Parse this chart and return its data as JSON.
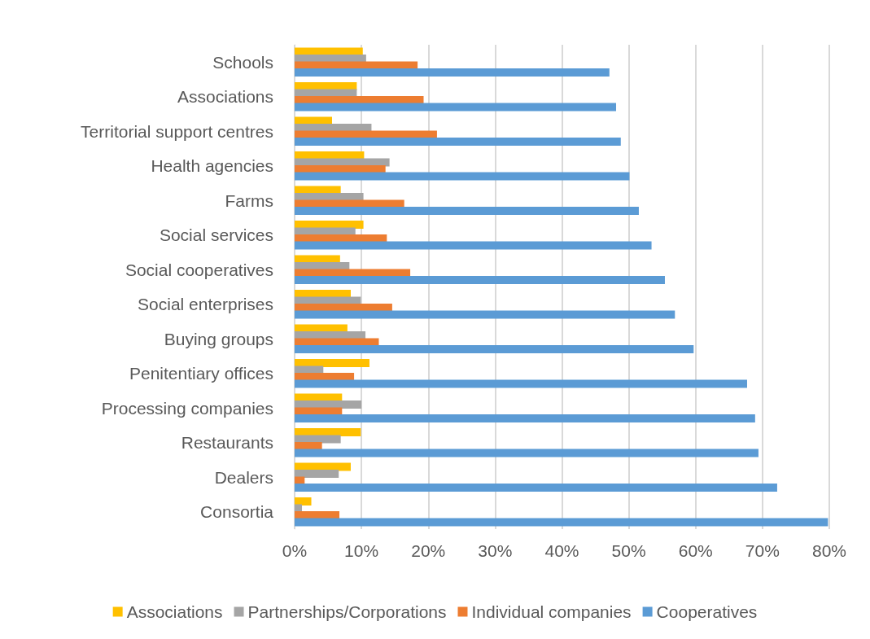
{
  "chart_data": {
    "type": "bar",
    "orientation": "horizontal",
    "categories": [
      "Schools",
      "Associations",
      "Territorial support centres",
      "Health agencies",
      "Farms",
      "Social services",
      "Social cooperatives",
      "Social enterprises",
      "Buying groups",
      "Penitentiary offices",
      "Processing companies",
      "Restaurants",
      "Dealers",
      "Consortia"
    ],
    "series": [
      {
        "name": "Associations",
        "color": "#ffc000",
        "values": [
          10.2,
          9.3,
          5.6,
          10.4,
          6.9,
          10.3,
          6.8,
          8.4,
          7.9,
          11.2,
          7.1,
          9.9,
          8.4,
          2.5
        ]
      },
      {
        "name": "Partnerships/Corporations",
        "color": "#a5a5a5",
        "values": [
          10.7,
          9.3,
          11.5,
          14.2,
          10.3,
          9.1,
          8.2,
          9.9,
          10.6,
          4.3,
          10.0,
          6.9,
          6.6,
          1.1
        ]
      },
      {
        "name": "Individual companies",
        "color": "#ed7d31",
        "values": [
          18.4,
          19.3,
          21.3,
          13.6,
          16.4,
          13.8,
          17.3,
          14.6,
          12.6,
          8.9,
          7.1,
          4.1,
          1.5,
          6.7
        ]
      },
      {
        "name": "Cooperatives",
        "color": "#5b9bd5",
        "values": [
          47.1,
          48.1,
          48.8,
          50.1,
          51.5,
          53.4,
          55.4,
          56.9,
          59.7,
          67.7,
          68.9,
          69.4,
          72.2,
          79.8
        ]
      }
    ],
    "xlim": [
      0,
      80
    ],
    "xticks": [
      {
        "value": 0,
        "label": "0%"
      },
      {
        "value": 10,
        "label": "10%"
      },
      {
        "value": 20,
        "label": "20%"
      },
      {
        "value": 30,
        "label": "30%"
      },
      {
        "value": 40,
        "label": "40%"
      },
      {
        "value": 50,
        "label": "50%"
      },
      {
        "value": 60,
        "label": "60%"
      },
      {
        "value": 70,
        "label": "70%"
      },
      {
        "value": 80,
        "label": "80%"
      }
    ],
    "grid": "x",
    "legend": "bottom"
  }
}
